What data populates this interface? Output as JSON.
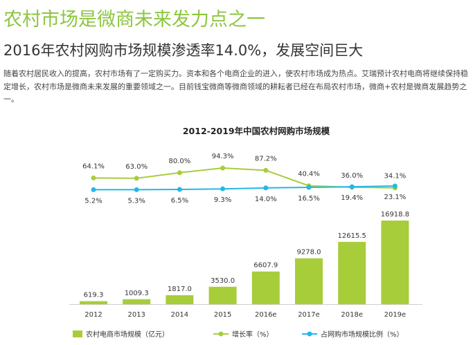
{
  "header": {
    "headline": "农村市场是微商未来发力点之一",
    "subheadline": "2016年农村网购市场规模渗透率14.0%，发展空间巨大",
    "intro": "随着农村居民收入的提高，农村市场有了一定购买力。资本和各个电商企业的进入，使农村市场成为热点。艾瑞预计农村电商将继续保持稳定增长，农村市场是微商未来发展的重要领域之一。目前钱宝微商等微商领域的耕耘者已经在布局农村市场，微商+农村是微商发展趋势之一。"
  },
  "colors": {
    "headline": "#8cc63f",
    "bar": "#a8cd3a",
    "growth_line": "#a8cd3a",
    "share_line": "#22b8e8"
  },
  "chart_data": {
    "type": "bar",
    "title": "2012-2019年中国农村网购市场规模",
    "categories": [
      "2012",
      "2013",
      "2014",
      "2015",
      "2016e",
      "2017e",
      "2018e",
      "2019e"
    ],
    "series": [
      {
        "name": "农村电商市场规模（亿元）",
        "type": "bar",
        "values": [
          619.3,
          1009.3,
          1817.0,
          3530.0,
          6607.9,
          9278.0,
          12615.5,
          16918.8
        ],
        "labels": [
          "619.3",
          "1009.3",
          "1817.0",
          "3530.0",
          "6607.9",
          "9278.0",
          "12615.5",
          "16918.8"
        ]
      },
      {
        "name": "增长率（%）",
        "type": "line",
        "values": [
          64.1,
          63.0,
          80.0,
          94.3,
          87.2,
          40.4,
          36.0,
          34.1
        ],
        "labels": [
          "64.1%",
          "63.0%",
          "80.0%",
          "94.3%",
          "87.2%",
          "40.4%",
          "36.0%",
          "34.1%"
        ]
      },
      {
        "name": "占网购市场规模比例（%）",
        "type": "line",
        "values": [
          5.2,
          5.3,
          6.5,
          9.3,
          14.0,
          16.5,
          19.4,
          23.1
        ],
        "labels": [
          "5.2%",
          "5.3%",
          "6.5%",
          "9.3%",
          "14.0%",
          "16.5%",
          "19.4%",
          "23.1%"
        ]
      }
    ],
    "legend_position": "bottom"
  }
}
